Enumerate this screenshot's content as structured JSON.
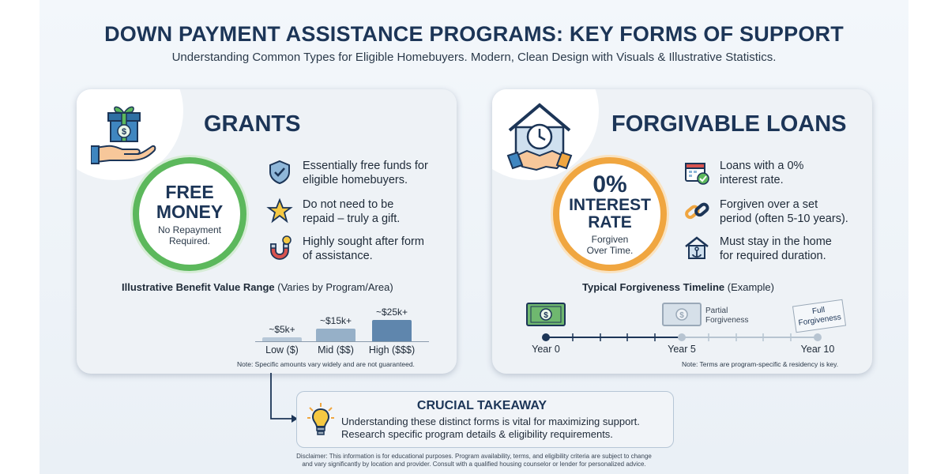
{
  "header": {
    "title": "DOWN PAYMENT ASSISTANCE PROGRAMS: KEY FORMS OF SUPPORT",
    "subtitle": "Understanding Common Types for Eligible Homebuyers. Modern, Clean Design with Visuals & Illustrative Statistics."
  },
  "grants": {
    "title": "GRANTS",
    "icon": "gift-hand-icon",
    "badge": {
      "line1": "FREE",
      "line2": "MONEY",
      "sub1": "No Repayment",
      "sub2": "Required.",
      "color": "#5cb85c"
    },
    "bullets": [
      {
        "icon": "shield-check-icon",
        "line1": "Essentially free funds for",
        "line2": "eligible homebuyers."
      },
      {
        "icon": "star-icon",
        "line1": "Do not need to be",
        "line2": "repaid – truly a gift."
      },
      {
        "icon": "magnet-icon",
        "line1": "Highly sought after form",
        "line2": "of assistance."
      }
    ],
    "chart_label_bold": "Illustrative Benefit Value Range",
    "chart_label_rest": " (Varies by Program/Area)",
    "note": "Note: Specific amounts vary widely and are not guaranteed."
  },
  "forgivable": {
    "title": "FORGIVABLE LOANS",
    "icon": "house-clock-handshake-icon",
    "badge": {
      "line1": "0%",
      "line2": "INTEREST",
      "line3": "RATE",
      "sub1": "Forgiven",
      "sub2": "Over Time.",
      "color": "#f0a640"
    },
    "bullets": [
      {
        "icon": "calendar-check-icon",
        "line1": "Loans with a 0%",
        "line2": "interest rate."
      },
      {
        "icon": "chain-link-icon",
        "line1": "Forgiven over a set",
        "line2": "period (often 5-10 years)."
      },
      {
        "icon": "house-anchor-icon",
        "line1": "Must stay in the home",
        "line2": "for required duration."
      }
    ],
    "timeline_label_bold": "Typical Forgiveness Timeline",
    "timeline_label_rest": " (Example)",
    "timeline": {
      "ticks": [
        "Year 0",
        "Year 5",
        "Year 10"
      ],
      "partial_line1": "Partial",
      "partial_line2": "Forgiveness",
      "full_line1": "Full",
      "full_line2": "Forgiveness"
    },
    "note": "Note: Terms are program-specific & residency is key."
  },
  "chart_data": {
    "type": "bar",
    "categories": [
      "Low ($)",
      "Mid ($$)",
      "High ($$$)"
    ],
    "values": [
      5,
      15,
      25
    ],
    "value_labels": [
      "~$5k+",
      "~$15k+",
      "~$25k+"
    ],
    "ylim": [
      0,
      25
    ],
    "grid": false
  },
  "takeaway": {
    "title": "CRUCIAL TAKEAWAY",
    "icon": "lightbulb-icon",
    "line1": "Understanding these distinct forms is vital for maximizing support.",
    "line2": "Research specific program details & eligibility requirements."
  },
  "disclaimer": {
    "line1": "Disclaimer: This information is for educational purposes. Program availability, terms, and eligibility criteria are subject to change",
    "line2": "and vary significantly by location and provider. Consult with a qualified housing counselor or lender for personalized advice."
  }
}
